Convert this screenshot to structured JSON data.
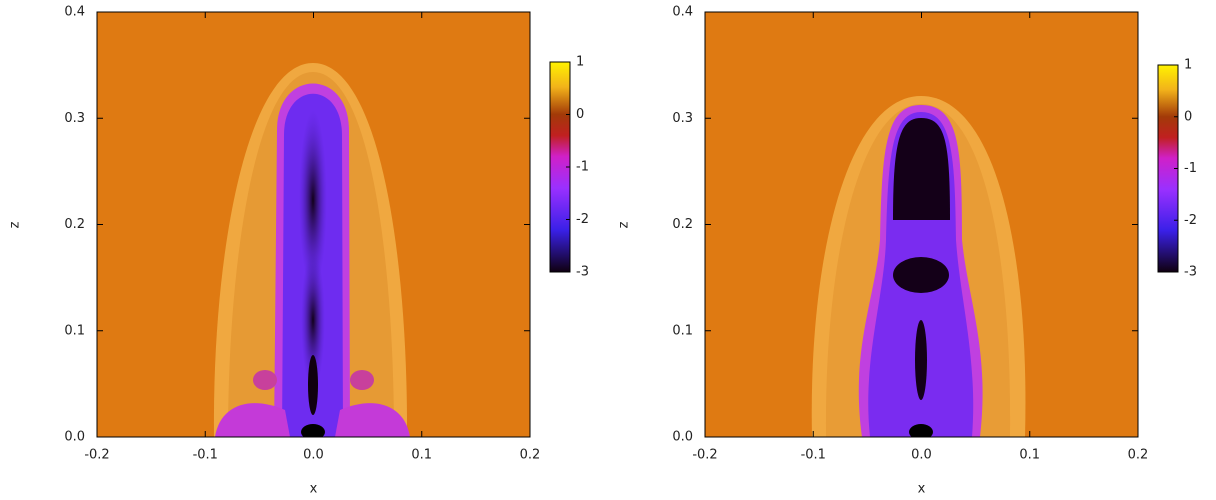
{
  "chart_data": [
    {
      "type": "image",
      "x_label": "x",
      "y_label": "z",
      "xlim": [
        -0.2,
        0.2
      ],
      "xticks": [
        -0.2,
        -0.1,
        {
          "value": 0,
          "label": "0.0"
        },
        0.1,
        0.2
      ],
      "ylim": [
        0,
        0.4
      ],
      "yticks": [
        {
          "value": 0,
          "label": "0.0"
        },
        0.1,
        0.2,
        0.3,
        0.4
      ],
      "colorbar_lim": [
        -3,
        1
      ],
      "colorbar_ticks": [
        1,
        0,
        -1,
        -2,
        -3
      ]
    },
    {
      "type": "image",
      "x_label": "x",
      "y_label": "z",
      "xlim": [
        -0.2,
        0.2
      ],
      "xticks": [
        -0.2,
        -0.1,
        {
          "value": 0,
          "label": "0.0"
        },
        0.1,
        0.2
      ],
      "ylim": [
        0,
        0.4
      ],
      "yticks": [
        {
          "value": 0,
          "label": "0.0"
        },
        0.1,
        0.2,
        0.3,
        0.4
      ],
      "colorbar_lim": [
        -3,
        1
      ],
      "colorbar_ticks": [
        1,
        0,
        -1,
        -2,
        -3
      ]
    }
  ]
}
